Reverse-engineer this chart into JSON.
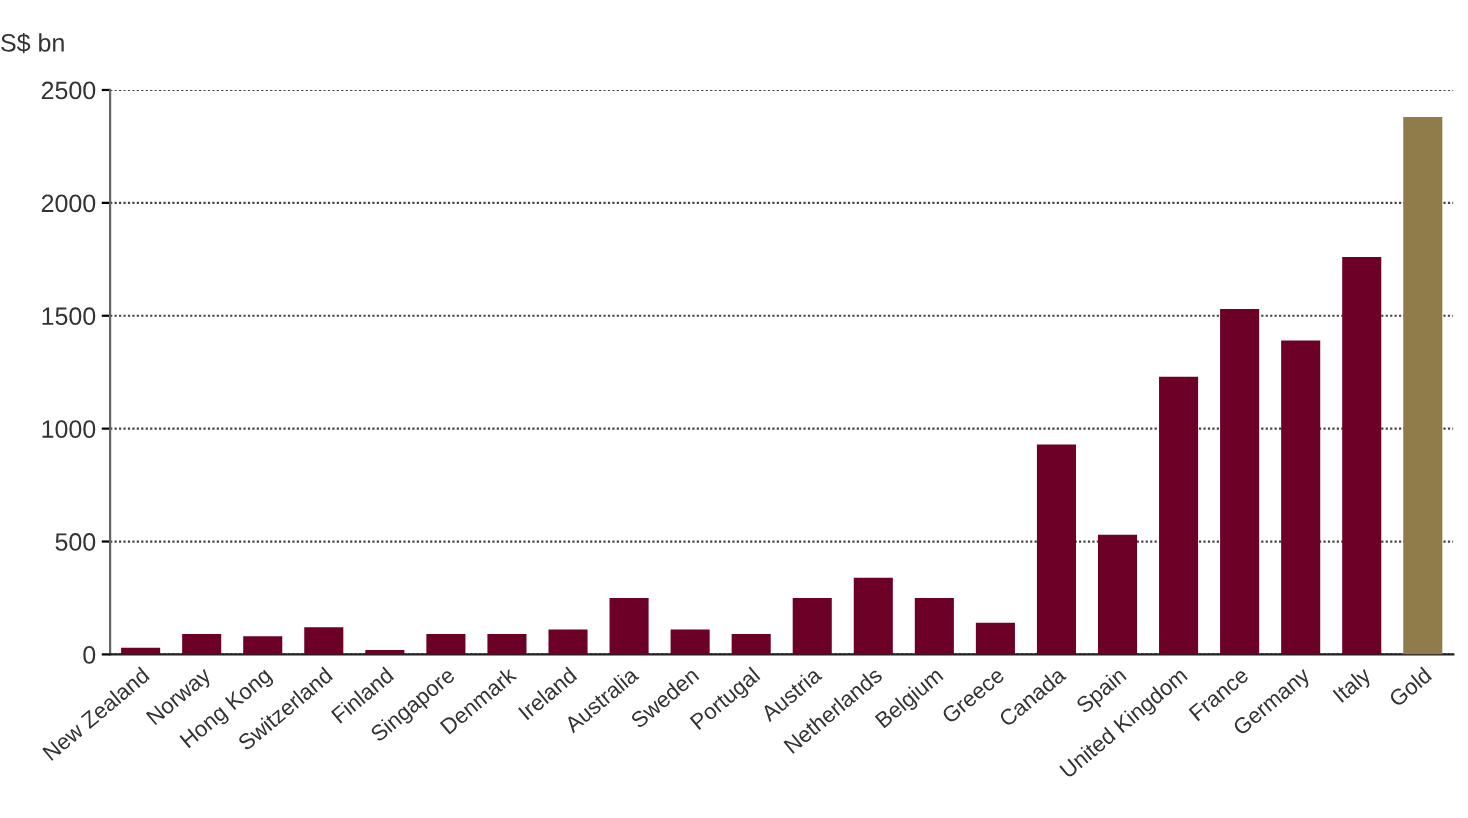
{
  "chart_data": {
    "type": "bar",
    "ylabel": "S$ bn",
    "categories": [
      "New Zealand",
      "Norway",
      "Hong Kong",
      "Switzerland",
      "Finland",
      "Singapore",
      "Denmark",
      "Ireland",
      "Australia",
      "Sweden",
      "Portugal",
      "Austria",
      "Netherlands",
      "Belgium",
      "Greece",
      "Canada",
      "Spain",
      "United Kingdom",
      "France",
      "Germany",
      "Italy",
      "Gold"
    ],
    "values": [
      30,
      90,
      80,
      120,
      20,
      90,
      90,
      110,
      250,
      110,
      90,
      250,
      340,
      250,
      140,
      930,
      530,
      1230,
      1530,
      1390,
      1760,
      2380
    ],
    "colors": [
      "#6d0026",
      "#6d0026",
      "#6d0026",
      "#6d0026",
      "#6d0026",
      "#6d0026",
      "#6d0026",
      "#6d0026",
      "#6d0026",
      "#6d0026",
      "#6d0026",
      "#6d0026",
      "#6d0026",
      "#6d0026",
      "#6d0026",
      "#6d0026",
      "#6d0026",
      "#6d0026",
      "#6d0026",
      "#6d0026",
      "#6d0026",
      "#8f7c4a"
    ],
    "ylim": [
      0,
      2500
    ],
    "yticks": [
      0,
      500,
      1000,
      1500,
      2000,
      2500
    ],
    "grid": "y"
  }
}
